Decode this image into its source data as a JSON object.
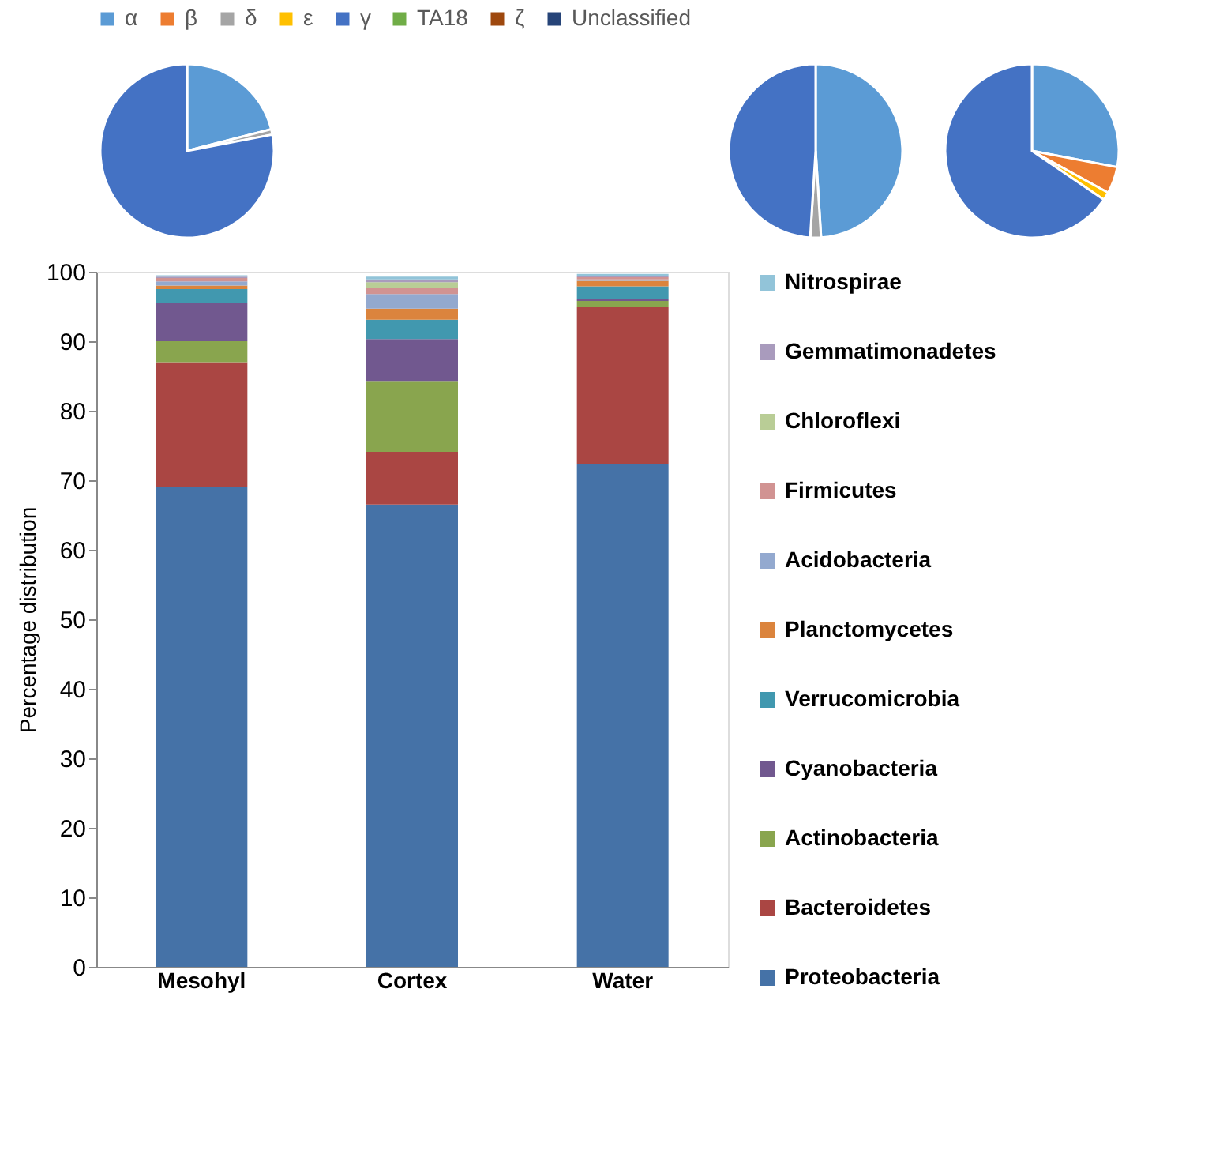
{
  "chart_data": [
    {
      "type": "pie",
      "categories": [
        "α",
        "β",
        "δ",
        "ε",
        "γ",
        "TA18",
        "ζ",
        "Unclassified"
      ],
      "values": [
        21,
        0,
        1,
        0,
        78,
        0,
        0,
        0
      ],
      "colors": [
        "#5b9bd5",
        "#ed7d31",
        "#a5a5a5",
        "#ffc000",
        "#4472c4",
        "#70ad47",
        "#9e480e",
        "#264478"
      ],
      "legend": "top"
    },
    {
      "type": "pie",
      "categories": [
        null,
        null,
        null,
        null,
        null,
        null,
        null,
        null
      ],
      "values": [
        49,
        0,
        2,
        0,
        49,
        0,
        0,
        0
      ],
      "colors": [
        "#5b9bd5",
        "#ed7d31",
        "#a5a5a5",
        "#ffc000",
        "#4472c4",
        "#70ad47",
        "#9e480e",
        "#264478"
      ]
    },
    {
      "type": "pie",
      "categories": [
        null,
        null,
        null,
        null,
        null,
        null,
        null,
        null
      ],
      "values": [
        28,
        5,
        0,
        1.5,
        65.5,
        0,
        0,
        0
      ],
      "colors": [
        "#5b9bd5",
        "#ed7d31",
        "#a5a5a5",
        "#ffc000",
        "#4472c4",
        "#70ad47",
        "#9e480e",
        "#264478"
      ]
    },
    {
      "type": "bar",
      "stacked": true,
      "categories": [
        "Mesohyl",
        "Cortex",
        "Water"
      ],
      "ylabel": "Percentage distribution",
      "ylim": [
        0,
        100
      ],
      "yticks": [
        0,
        10,
        20,
        30,
        40,
        50,
        60,
        70,
        80,
        90,
        100
      ],
      "legend": "right",
      "series": [
        {
          "name": "Proteobacteria",
          "color": "#4572a7",
          "values": [
            69,
            66.5,
            72.3
          ]
        },
        {
          "name": "Bacteroidetes",
          "color": "#aa4643",
          "values": [
            18,
            7.6,
            22.6
          ]
        },
        {
          "name": "Actinobacteria",
          "color": "#89a54e",
          "values": [
            3,
            10.2,
            0.9
          ]
        },
        {
          "name": "Cyanobacteria",
          "color": "#71588f",
          "values": [
            5.5,
            6,
            0.3
          ]
        },
        {
          "name": "Verrucomicrobia",
          "color": "#4198af",
          "values": [
            2,
            2.8,
            1.8
          ]
        },
        {
          "name": "Planctomycetes",
          "color": "#db843d",
          "values": [
            0.5,
            1.6,
            0.8
          ]
        },
        {
          "name": "Acidobacteria",
          "color": "#93a9cf",
          "values": [
            0.6,
            2.1,
            0.2
          ]
        },
        {
          "name": "Firmicutes",
          "color": "#d19392",
          "values": [
            0.5,
            0.9,
            0.3
          ]
        },
        {
          "name": "Chloroflexi",
          "color": "#b9cd96",
          "values": [
            0,
            0.8,
            0
          ]
        },
        {
          "name": "Gemmatimonadetes",
          "color": "#a99bbd",
          "values": [
            0.2,
            0.4,
            0.2
          ]
        },
        {
          "name": "Nitrospirae",
          "color": "#92c4d9",
          "values": [
            0.2,
            0.4,
            0.3
          ]
        }
      ]
    }
  ]
}
